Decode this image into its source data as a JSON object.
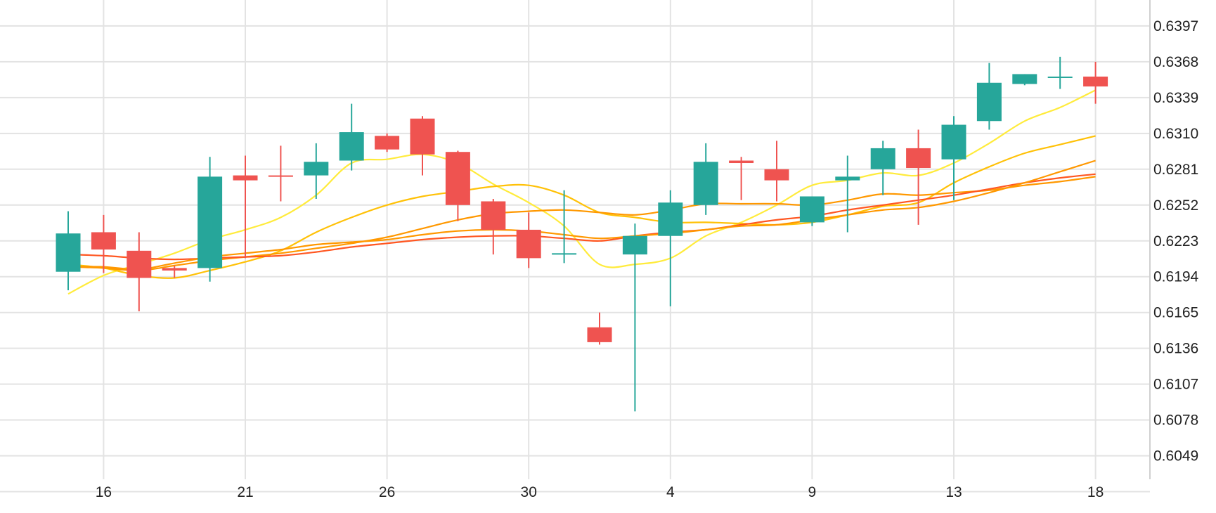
{
  "chart_data": {
    "type": "candlestick",
    "title": "",
    "xlabel": "",
    "ylabel": "",
    "ylim": [
      0.603,
      0.6418
    ],
    "y_ticks": [
      0.6397,
      0.6368,
      0.6339,
      0.631,
      0.6281,
      0.6252,
      0.6223,
      0.6194,
      0.6165,
      0.6136,
      0.6107,
      0.6078,
      0.6049
    ],
    "x_tick_labels": [
      {
        "label": "16",
        "index": 1
      },
      {
        "label": "21",
        "index": 5
      },
      {
        "label": "26",
        "index": 9
      },
      {
        "label": "30",
        "index": 13
      },
      {
        "label": "4",
        "index": 17
      },
      {
        "label": "9",
        "index": 21
      },
      {
        "label": "13",
        "index": 25
      },
      {
        "label": "18",
        "index": 29
      }
    ],
    "colors": {
      "up": "#26a69a",
      "down": "#ef5350",
      "grid": "#e3e3e3",
      "ma_yellow": "#ffeb3b",
      "ma_gold": "#ffc107",
      "ma_orange": "#ff9800",
      "ma_redorange": "#ff5722"
    },
    "candles": [
      {
        "o": 0.6198,
        "h": 0.6247,
        "l": 0.6183,
        "c": 0.6229
      },
      {
        "o": 0.623,
        "h": 0.6244,
        "l": 0.6197,
        "c": 0.6216
      },
      {
        "o": 0.6215,
        "h": 0.623,
        "l": 0.6166,
        "c": 0.6193
      },
      {
        "o": 0.6201,
        "h": 0.6203,
        "l": 0.6193,
        "c": 0.6199
      },
      {
        "o": 0.6201,
        "h": 0.6291,
        "l": 0.619,
        "c": 0.6275
      },
      {
        "o": 0.6276,
        "h": 0.6292,
        "l": 0.6209,
        "c": 0.6272
      },
      {
        "o": 0.6276,
        "h": 0.63,
        "l": 0.6255,
        "c": 0.6275
      },
      {
        "o": 0.6276,
        "h": 0.6302,
        "l": 0.6257,
        "c": 0.6287
      },
      {
        "o": 0.6288,
        "h": 0.6334,
        "l": 0.628,
        "c": 0.6311
      },
      {
        "o": 0.6308,
        "h": 0.631,
        "l": 0.6295,
        "c": 0.6297
      },
      {
        "o": 0.6322,
        "h": 0.6324,
        "l": 0.6276,
        "c": 0.6293
      },
      {
        "o": 0.6295,
        "h": 0.6296,
        "l": 0.6239,
        "c": 0.6252
      },
      {
        "o": 0.6255,
        "h": 0.6257,
        "l": 0.6212,
        "c": 0.6232
      },
      {
        "o": 0.6232,
        "h": 0.6246,
        "l": 0.6201,
        "c": 0.6209
      },
      {
        "o": 0.6212,
        "h": 0.6264,
        "l": 0.6205,
        "c": 0.6213
      },
      {
        "o": 0.6153,
        "h": 0.6165,
        "l": 0.6139,
        "c": 0.6141
      },
      {
        "o": 0.6212,
        "h": 0.6237,
        "l": 0.6085,
        "c": 0.6227
      },
      {
        "o": 0.6227,
        "h": 0.6264,
        "l": 0.617,
        "c": 0.6254
      },
      {
        "o": 0.6252,
        "h": 0.6302,
        "l": 0.6244,
        "c": 0.6287
      },
      {
        "o": 0.6288,
        "h": 0.6291,
        "l": 0.6256,
        "c": 0.6286
      },
      {
        "o": 0.6281,
        "h": 0.6304,
        "l": 0.6255,
        "c": 0.6272
      },
      {
        "o": 0.6238,
        "h": 0.6259,
        "l": 0.6235,
        "c": 0.6259
      },
      {
        "o": 0.6272,
        "h": 0.6292,
        "l": 0.623,
        "c": 0.6275
      },
      {
        "o": 0.6281,
        "h": 0.6304,
        "l": 0.626,
        "c": 0.6298
      },
      {
        "o": 0.6298,
        "h": 0.6313,
        "l": 0.6236,
        "c": 0.6282
      },
      {
        "o": 0.6289,
        "h": 0.6324,
        "l": 0.6256,
        "c": 0.6317
      },
      {
        "o": 0.632,
        "h": 0.6367,
        "l": 0.6313,
        "c": 0.6351
      },
      {
        "o": 0.635,
        "h": 0.6358,
        "l": 0.6349,
        "c": 0.6358
      },
      {
        "o": 0.6356,
        "h": 0.6372,
        "l": 0.6346,
        "c": 0.6356
      },
      {
        "o": 0.6356,
        "h": 0.6368,
        "l": 0.6334,
        "c": 0.6348
      }
    ],
    "moving_averages": [
      {
        "color": "#ffeb3b",
        "values": [
          0.618,
          0.6195,
          0.6204,
          0.6213,
          0.6224,
          0.6232,
          0.6242,
          0.626,
          0.6286,
          0.6289,
          0.6293,
          0.6286,
          0.6269,
          0.6254,
          0.6235,
          0.6204,
          0.6204,
          0.6209,
          0.6227,
          0.6238,
          0.6252,
          0.6268,
          0.6272,
          0.6278,
          0.6276,
          0.6286,
          0.6302,
          0.632,
          0.6331,
          0.6345
        ]
      },
      {
        "color": "#ffc107",
        "values": [
          0.6204,
          0.6201,
          0.6195,
          0.6193,
          0.6199,
          0.6206,
          0.6215,
          0.623,
          0.6242,
          0.6252,
          0.6259,
          0.6263,
          0.6267,
          0.6268,
          0.626,
          0.6246,
          0.6242,
          0.6238,
          0.6238,
          0.6237,
          0.6236,
          0.6238,
          0.6244,
          0.6251,
          0.6254,
          0.627,
          0.6283,
          0.6294,
          0.6301,
          0.6308
        ]
      },
      {
        "color": "#ff9800",
        "values": [
          0.6202,
          0.6201,
          0.6199,
          0.6203,
          0.6207,
          0.621,
          0.6213,
          0.6217,
          0.6221,
          0.6226,
          0.6233,
          0.624,
          0.6245,
          0.6247,
          0.6248,
          0.6246,
          0.6244,
          0.6248,
          0.6253,
          0.6253,
          0.6253,
          0.6252,
          0.6256,
          0.6261,
          0.626,
          0.6262,
          0.6264,
          0.6268,
          0.6271,
          0.6275
        ]
      },
      {
        "color": "#ff5722",
        "values": [
          0.6212,
          0.6211,
          0.6209,
          0.6208,
          0.6209,
          0.621,
          0.6211,
          0.6214,
          0.6218,
          0.6221,
          0.6224,
          0.6226,
          0.6227,
          0.6227,
          0.6225,
          0.6223,
          0.6227,
          0.623,
          0.6232,
          0.6236,
          0.624,
          0.6243,
          0.6248,
          0.6252,
          0.6256,
          0.626,
          0.6265,
          0.627,
          0.6274,
          0.6277
        ]
      },
      {
        "color": "#ff9800",
        "values": [
          0.6202,
          0.6202,
          0.62,
          0.6205,
          0.621,
          0.6213,
          0.6216,
          0.622,
          0.6222,
          0.6224,
          0.6228,
          0.6231,
          0.6232,
          0.6231,
          0.6228,
          0.6225,
          0.6227,
          0.6229,
          0.6232,
          0.6235,
          0.6236,
          0.624,
          0.6244,
          0.6248,
          0.625,
          0.6255,
          0.6262,
          0.627,
          0.6279,
          0.6288
        ]
      }
    ]
  }
}
